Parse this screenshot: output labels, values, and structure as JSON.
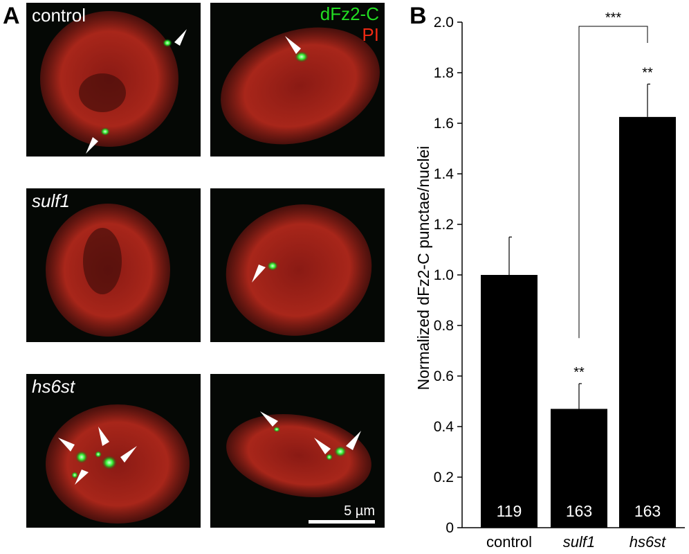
{
  "panel_a": {
    "letter": "A",
    "rows": [
      {
        "label": "control"
      },
      {
        "label": "sulf1"
      },
      {
        "label": "hs6st"
      }
    ],
    "legend": {
      "green_label": "dFz2-C",
      "red_label": "PI",
      "green_color": "#22dd22",
      "red_color": "#ee2a14"
    },
    "scale_bar": "5 µm"
  },
  "panel_b": {
    "letter": "B"
  },
  "chart_data": {
    "type": "bar",
    "categories": [
      "control",
      "sulf1",
      "hs6st"
    ],
    "values": [
      1.0,
      0.47,
      1.625
    ],
    "errors": [
      0.15,
      0.1,
      0.13
    ],
    "bar_labels": [
      "119",
      "163",
      "163"
    ],
    "significance": [
      "",
      "**",
      "**"
    ],
    "bracket": {
      "from": "sulf1",
      "to": "hs6st",
      "label": "***"
    },
    "ylabel": "Normalized dFz2-C punctae/nuclei",
    "xlabel": "",
    "ylim": [
      0,
      2.0
    ],
    "yticks": [
      "0",
      "0.2",
      "0.4",
      "0.6",
      "0.8",
      "1.0",
      "1.2",
      "1.4",
      "1.6",
      "1.8",
      "2.0"
    ],
    "bar_color": "#000000"
  }
}
